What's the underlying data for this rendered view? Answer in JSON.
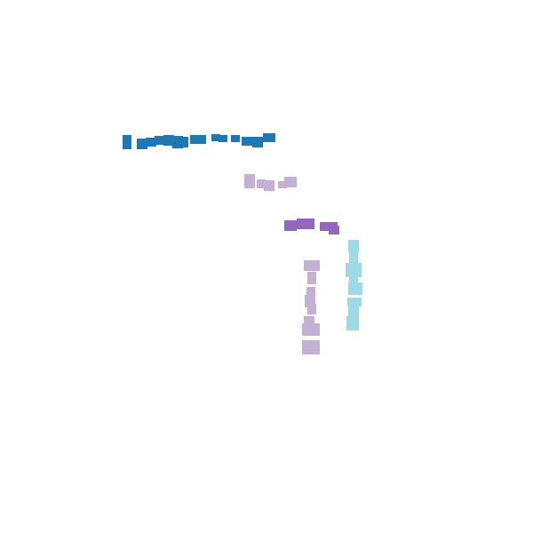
{
  "palette": {
    "background": "#ffffff",
    "series_a": "#1f77b4",
    "series_b": "#c5b0d5",
    "series_c": "#9467bd",
    "series_d": "#9edae5"
  },
  "groups": [
    {
      "name": "dark-blue-trail",
      "color_key": "series_a",
      "mark_count": 14
    },
    {
      "name": "light-purple-upper-trail",
      "color_key": "series_b",
      "mark_count": 4
    },
    {
      "name": "purple-trail",
      "color_key": "series_c",
      "mark_count": 3
    },
    {
      "name": "light-purple-vertical-trail",
      "color_key": "series_b",
      "mark_count": 9
    },
    {
      "name": "light-cyan-vertical-trail",
      "color_key": "series_d",
      "mark_count": 8
    }
  ]
}
